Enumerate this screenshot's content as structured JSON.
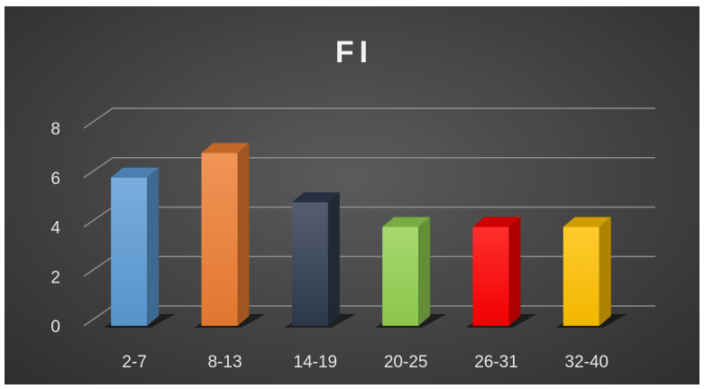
{
  "chart_data": {
    "type": "bar",
    "style": "3d-columns",
    "title": "FI",
    "xlabel": "",
    "ylabel": "",
    "categories": [
      "2-7",
      "8-13",
      "14-19",
      "20-25",
      "26-31",
      "32-40"
    ],
    "values": [
      6,
      7,
      5,
      4,
      4,
      4
    ],
    "bar_colors": [
      "#5b9bd5",
      "#ed7d31",
      "#2e3b4e",
      "#92d050",
      "#ff0000",
      "#ffc000"
    ],
    "ylim": [
      0,
      8
    ],
    "yticks": [
      "0",
      "2",
      "4",
      "6",
      "8"
    ],
    "grid": true,
    "legend": "none",
    "background_color": "#474747",
    "text_color": "#e6e6e6"
  }
}
